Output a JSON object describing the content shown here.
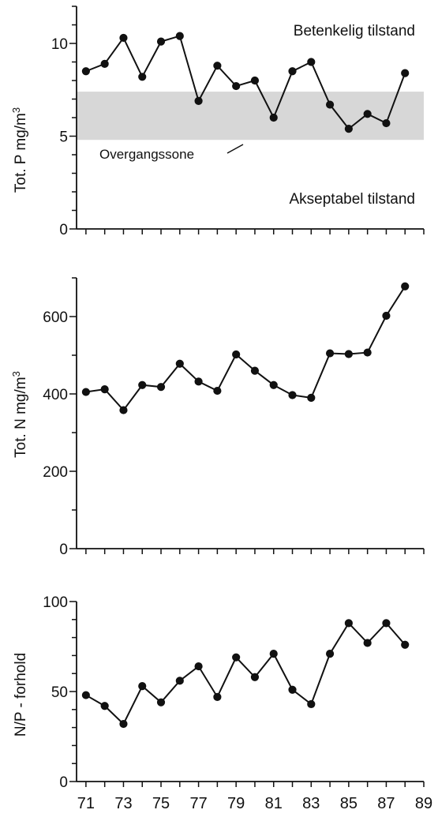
{
  "chart_data": [
    {
      "type": "line",
      "ylabel": "Tot. P mg/m",
      "ylabel_superscript": "3",
      "ylim": [
        0,
        12
      ],
      "yticks": [
        "0",
        "5",
        "10"
      ],
      "x": [
        71,
        72,
        73,
        74,
        75,
        76,
        77,
        78,
        79,
        80,
        81,
        82,
        83,
        84,
        85,
        86,
        87,
        88
      ],
      "series": [
        {
          "values": [
            8.5,
            8.9,
            10.3,
            8.2,
            10.1,
            10.4,
            6.9,
            8.8,
            7.7,
            8.0,
            6.0,
            8.5,
            9.0,
            6.7,
            5.4,
            6.2,
            5.7,
            8.4
          ]
        }
      ],
      "band": {
        "from": 4.8,
        "to": 7.4,
        "color": "#d7d7d7",
        "label": "Overgangssone"
      },
      "annotations": [
        "Betenkelig tilstand",
        "Akseptabel tilstand"
      ],
      "grid": false
    },
    {
      "type": "line",
      "ylabel": "Tot. N mg/m",
      "ylabel_superscript": "3",
      "ylim": [
        0,
        700
      ],
      "yticks": [
        "0",
        "200",
        "400",
        "600"
      ],
      "x": [
        71,
        72,
        73,
        74,
        75,
        76,
        77,
        78,
        79,
        80,
        81,
        82,
        83,
        84,
        85,
        86,
        87,
        88
      ],
      "series": [
        {
          "values": [
            405,
            412,
            358,
            423,
            418,
            478,
            432,
            408,
            502,
            460,
            423,
            397,
            390,
            505,
            503,
            507,
            602,
            678
          ]
        }
      ],
      "grid": false
    },
    {
      "type": "line",
      "ylabel": "N/P - forhold",
      "ylim": [
        0,
        100
      ],
      "yticks": [
        "0",
        "50",
        "100"
      ],
      "xlim": [
        70.5,
        89
      ],
      "xticks": [
        "71",
        "73",
        "75",
        "77",
        "79",
        "81",
        "83",
        "85",
        "87",
        "89"
      ],
      "x": [
        71,
        72,
        73,
        74,
        75,
        76,
        77,
        78,
        79,
        80,
        81,
        82,
        83,
        84,
        85,
        86,
        87,
        88
      ],
      "series": [
        {
          "values": [
            48,
            42,
            32,
            53,
            44,
            56,
            64,
            47,
            69,
            58,
            71,
            51,
            43,
            71,
            88,
            77,
            88,
            76
          ]
        }
      ],
      "grid": false
    }
  ],
  "colors": {
    "line": "#111111",
    "band": "#d7d7d7"
  }
}
